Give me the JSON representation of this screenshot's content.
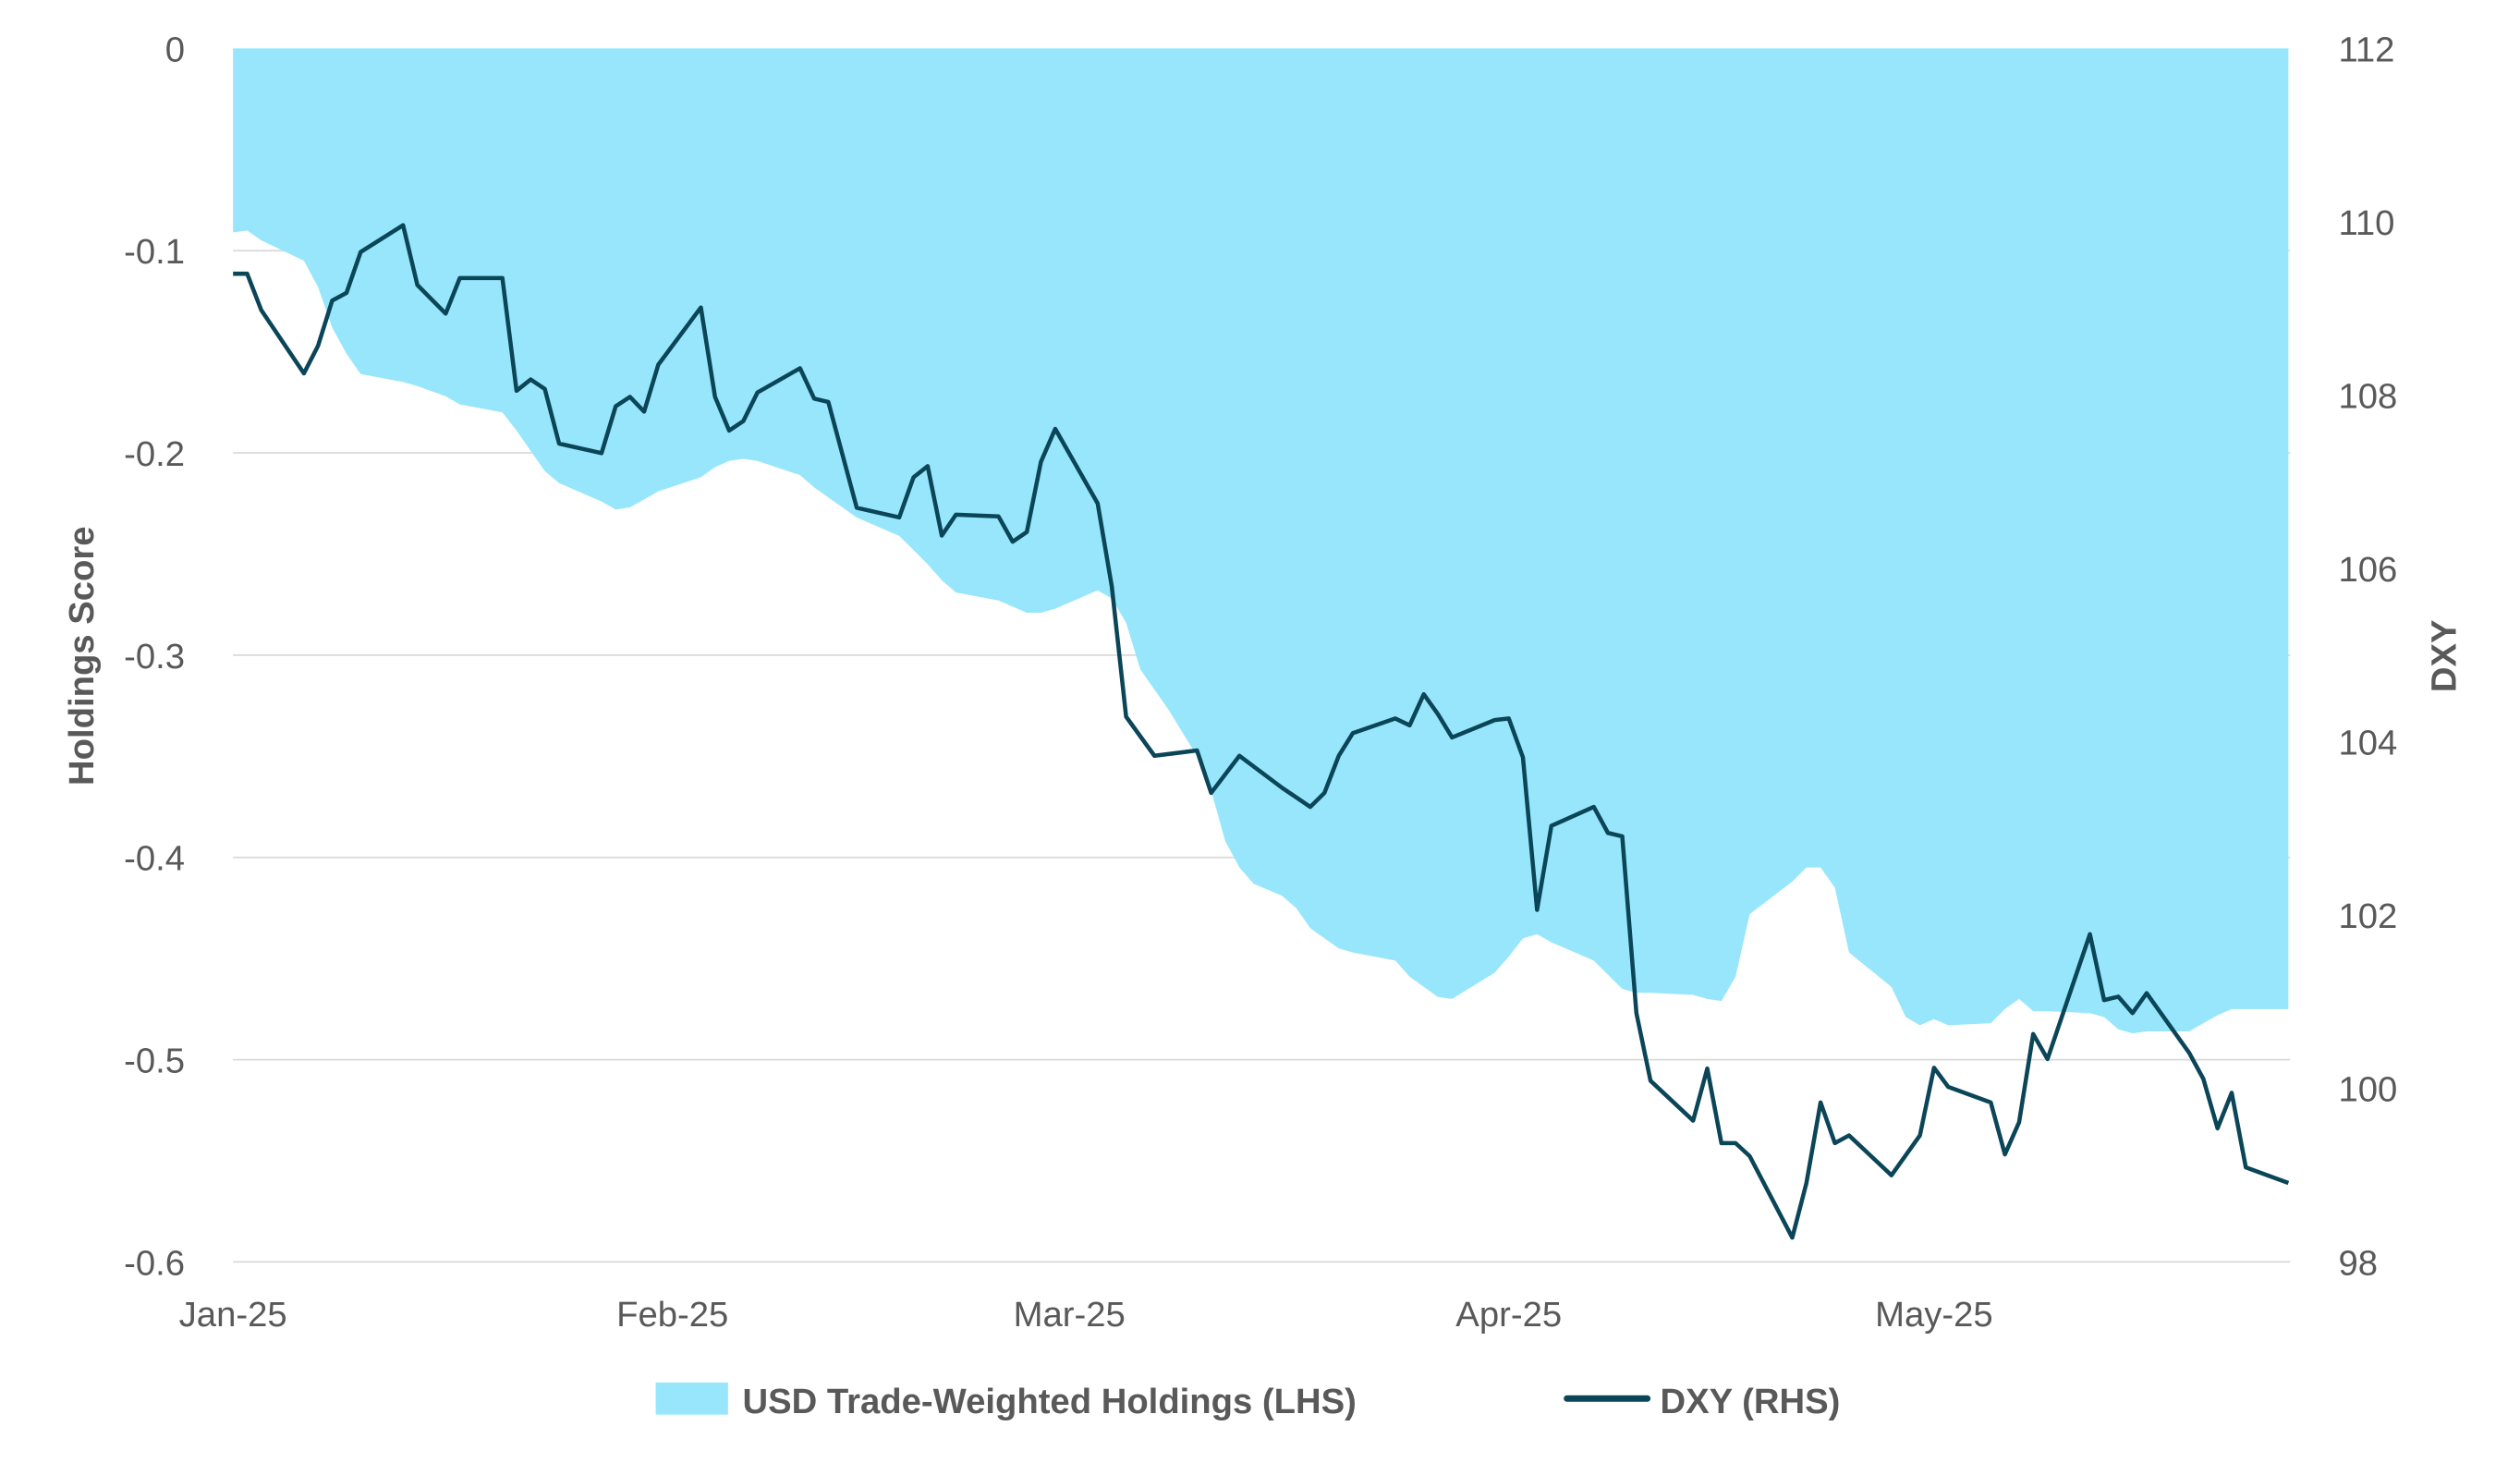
{
  "chart_data": {
    "type": "area+line",
    "title": "",
    "xlabel": "",
    "ylabel_left": "Holdings Score",
    "ylabel_right": "DXY",
    "ylim_left": [
      -0.6,
      0
    ],
    "ylim_right": [
      98,
      112
    ],
    "yticks_left": [
      "0",
      "-0.1",
      "-0.2",
      "-0.3",
      "-0.4",
      "-0.5",
      "-0.6"
    ],
    "yticks_right": [
      "112",
      "110",
      "108",
      "106",
      "104",
      "102",
      "100",
      "98"
    ],
    "xticks": [
      {
        "date": "2025-01-01",
        "label": "Jan-25"
      },
      {
        "date": "2025-02-01",
        "label": "Feb-25"
      },
      {
        "date": "2025-03-01",
        "label": "Mar-25"
      },
      {
        "date": "2025-04-01",
        "label": "Apr-25"
      },
      {
        "date": "2025-05-01",
        "label": "May-25"
      }
    ],
    "grid": "horizontal",
    "legend_position": "bottom",
    "series": [
      {
        "name": "USD Trade-Weighted Holdings (LHS)",
        "type": "area",
        "axis": "left",
        "color": "#98E6FC",
        "points": [
          [
            "2025-01-01",
            -0.091
          ],
          [
            "2025-01-02",
            -0.09
          ],
          [
            "2025-01-03",
            -0.095
          ],
          [
            "2025-01-06",
            -0.105
          ],
          [
            "2025-01-07",
            -0.118
          ],
          [
            "2025-01-08",
            -0.138
          ],
          [
            "2025-01-09",
            -0.151
          ],
          [
            "2025-01-10",
            -0.161
          ],
          [
            "2025-01-13",
            -0.165
          ],
          [
            "2025-01-14",
            -0.167
          ],
          [
            "2025-01-16",
            -0.172
          ],
          [
            "2025-01-17",
            -0.176
          ],
          [
            "2025-01-20",
            -0.18
          ],
          [
            "2025-01-21",
            -0.189
          ],
          [
            "2025-01-22",
            -0.199
          ],
          [
            "2025-01-23",
            -0.209
          ],
          [
            "2025-01-24",
            -0.215
          ],
          [
            "2025-01-27",
            -0.224
          ],
          [
            "2025-01-28",
            -0.228
          ],
          [
            "2025-01-29",
            -0.227
          ],
          [
            "2025-01-30",
            -0.223
          ],
          [
            "2025-01-31",
            -0.219
          ],
          [
            "2025-02-03",
            -0.212
          ],
          [
            "2025-02-04",
            -0.207
          ],
          [
            "2025-02-05",
            -0.204
          ],
          [
            "2025-02-06",
            -0.203
          ],
          [
            "2025-02-07",
            -0.204
          ],
          [
            "2025-02-10",
            -0.211
          ],
          [
            "2025-02-11",
            -0.217
          ],
          [
            "2025-02-12",
            -0.222
          ],
          [
            "2025-02-14",
            -0.232
          ],
          [
            "2025-02-17",
            -0.241
          ],
          [
            "2025-02-18",
            -0.248
          ],
          [
            "2025-02-19",
            -0.255
          ],
          [
            "2025-02-20",
            -0.263
          ],
          [
            "2025-02-21",
            -0.269
          ],
          [
            "2025-02-24",
            -0.273
          ],
          [
            "2025-02-25",
            -0.276
          ],
          [
            "2025-02-26",
            -0.279
          ],
          [
            "2025-02-27",
            -0.279
          ],
          [
            "2025-02-28",
            -0.277
          ],
          [
            "2025-03-03",
            -0.268
          ],
          [
            "2025-03-04",
            -0.272
          ],
          [
            "2025-03-05",
            -0.284
          ],
          [
            "2025-03-06",
            -0.307
          ],
          [
            "2025-03-08",
            -0.327
          ],
          [
            "2025-03-10",
            -0.35
          ],
          [
            "2025-03-11",
            -0.367
          ],
          [
            "2025-03-12",
            -0.392
          ],
          [
            "2025-03-13",
            -0.405
          ],
          [
            "2025-03-14",
            -0.413
          ],
          [
            "2025-03-16",
            -0.419
          ],
          [
            "2025-03-17",
            -0.425
          ],
          [
            "2025-03-18",
            -0.435
          ],
          [
            "2025-03-20",
            -0.445
          ],
          [
            "2025-03-21",
            -0.447
          ],
          [
            "2025-03-24",
            -0.451
          ],
          [
            "2025-03-25",
            -0.459
          ],
          [
            "2025-03-27",
            -0.469
          ],
          [
            "2025-03-28",
            -0.47
          ],
          [
            "2025-03-31",
            -0.457
          ],
          [
            "2025-04-01",
            -0.449
          ],
          [
            "2025-04-02",
            -0.44
          ],
          [
            "2025-04-03",
            -0.438
          ],
          [
            "2025-04-04",
            -0.442
          ],
          [
            "2025-04-07",
            -0.451
          ],
          [
            "2025-04-08",
            -0.458
          ],
          [
            "2025-04-09",
            -0.465
          ],
          [
            "2025-04-10",
            -0.467
          ],
          [
            "2025-04-11",
            -0.467
          ],
          [
            "2025-04-14",
            -0.468
          ],
          [
            "2025-04-15",
            -0.47
          ],
          [
            "2025-04-16",
            -0.471
          ],
          [
            "2025-04-17",
            -0.459
          ],
          [
            "2025-04-18",
            -0.428
          ],
          [
            "2025-04-21",
            -0.412
          ],
          [
            "2025-04-22",
            -0.405
          ],
          [
            "2025-04-23",
            -0.405
          ],
          [
            "2025-04-24",
            -0.415
          ],
          [
            "2025-04-25",
            -0.447
          ],
          [
            "2025-04-28",
            -0.464
          ],
          [
            "2025-04-29",
            -0.479
          ],
          [
            "2025-04-30",
            -0.483
          ],
          [
            "2025-05-01",
            -0.48
          ],
          [
            "2025-05-02",
            -0.483
          ],
          [
            "2025-05-05",
            -0.482
          ],
          [
            "2025-05-06",
            -0.475
          ],
          [
            "2025-05-07",
            -0.47
          ],
          [
            "2025-05-08",
            -0.476
          ],
          [
            "2025-05-09",
            -0.476
          ],
          [
            "2025-05-12",
            -0.477
          ],
          [
            "2025-05-13",
            -0.479
          ],
          [
            "2025-05-14",
            -0.485
          ],
          [
            "2025-05-15",
            -0.487
          ],
          [
            "2025-05-16",
            -0.486
          ],
          [
            "2025-05-19",
            -0.486
          ],
          [
            "2025-05-20",
            -0.482
          ],
          [
            "2025-05-21",
            -0.478
          ],
          [
            "2025-05-22",
            -0.475
          ],
          [
            "2025-05-23",
            -0.475
          ],
          [
            "2025-05-26",
            -0.475
          ]
        ]
      },
      {
        "name": "DXY (RHS)",
        "type": "line",
        "axis": "right",
        "color": "#0B4558",
        "points": [
          [
            "2025-01-01",
            109.4
          ],
          [
            "2025-01-02",
            109.4
          ],
          [
            "2025-01-03",
            108.98
          ],
          [
            "2025-01-06",
            108.25
          ],
          [
            "2025-01-07",
            108.57
          ],
          [
            "2025-01-08",
            109.09
          ],
          [
            "2025-01-09",
            109.18
          ],
          [
            "2025-01-10",
            109.65
          ],
          [
            "2025-01-13",
            109.96
          ],
          [
            "2025-01-14",
            109.27
          ],
          [
            "2025-01-16",
            108.94
          ],
          [
            "2025-01-17",
            109.35
          ],
          [
            "2025-01-20",
            109.35
          ],
          [
            "2025-01-21",
            108.05
          ],
          [
            "2025-01-22",
            108.18
          ],
          [
            "2025-01-23",
            108.07
          ],
          [
            "2025-01-24",
            107.44
          ],
          [
            "2025-01-27",
            107.33
          ],
          [
            "2025-01-28",
            107.87
          ],
          [
            "2025-01-29",
            107.98
          ],
          [
            "2025-01-30",
            107.81
          ],
          [
            "2025-01-31",
            108.35
          ],
          [
            "2025-02-03",
            109.01
          ],
          [
            "2025-02-04",
            107.98
          ],
          [
            "2025-02-05",
            107.59
          ],
          [
            "2025-02-06",
            107.7
          ],
          [
            "2025-02-07",
            108.03
          ],
          [
            "2025-02-10",
            108.31
          ],
          [
            "2025-02-11",
            107.96
          ],
          [
            "2025-02-12",
            107.92
          ],
          [
            "2025-02-14",
            106.7
          ],
          [
            "2025-02-17",
            106.59
          ],
          [
            "2025-02-18",
            107.05
          ],
          [
            "2025-02-19",
            107.18
          ],
          [
            "2025-02-20",
            106.38
          ],
          [
            "2025-02-21",
            106.62
          ],
          [
            "2025-02-24",
            106.6
          ],
          [
            "2025-02-25",
            106.31
          ],
          [
            "2025-02-26",
            106.42
          ],
          [
            "2025-02-27",
            107.23
          ],
          [
            "2025-02-28",
            107.61
          ],
          [
            "2025-03-03",
            106.75
          ],
          [
            "2025-03-04",
            105.79
          ],
          [
            "2025-03-05",
            104.29
          ],
          [
            "2025-03-07",
            103.84
          ],
          [
            "2025-03-10",
            103.9
          ],
          [
            "2025-03-11",
            103.41
          ],
          [
            "2025-03-13",
            103.84
          ],
          [
            "2025-03-16",
            103.47
          ],
          [
            "2025-03-18",
            103.25
          ],
          [
            "2025-03-19",
            103.41
          ],
          [
            "2025-03-20",
            103.84
          ],
          [
            "2025-03-21",
            104.1
          ],
          [
            "2025-03-24",
            104.27
          ],
          [
            "2025-03-25",
            104.19
          ],
          [
            "2025-03-26",
            104.55
          ],
          [
            "2025-03-27",
            104.32
          ],
          [
            "2025-03-28",
            104.05
          ],
          [
            "2025-03-31",
            104.25
          ],
          [
            "2025-04-01",
            104.27
          ],
          [
            "2025-04-02",
            103.82
          ],
          [
            "2025-04-03",
            102.06
          ],
          [
            "2025-04-04",
            103.03
          ],
          [
            "2025-04-07",
            103.25
          ],
          [
            "2025-04-08",
            102.95
          ],
          [
            "2025-04-09",
            102.91
          ],
          [
            "2025-04-10",
            100.87
          ],
          [
            "2025-04-11",
            100.09
          ],
          [
            "2025-04-14",
            99.63
          ],
          [
            "2025-04-15",
            100.23
          ],
          [
            "2025-04-16",
            99.37
          ],
          [
            "2025-04-17",
            99.37
          ],
          [
            "2025-04-18",
            99.22
          ],
          [
            "2025-04-21",
            98.28
          ],
          [
            "2025-04-22",
            98.91
          ],
          [
            "2025-04-23",
            99.84
          ],
          [
            "2025-04-24",
            99.37
          ],
          [
            "2025-04-25",
            99.46
          ],
          [
            "2025-04-28",
            99.0
          ],
          [
            "2025-04-30",
            99.46
          ],
          [
            "2025-05-01",
            100.24
          ],
          [
            "2025-05-02",
            100.02
          ],
          [
            "2025-05-05",
            99.84
          ],
          [
            "2025-05-06",
            99.24
          ],
          [
            "2025-05-07",
            99.61
          ],
          [
            "2025-05-08",
            100.63
          ],
          [
            "2025-05-09",
            100.34
          ],
          [
            "2025-05-12",
            101.78
          ],
          [
            "2025-05-13",
            101.02
          ],
          [
            "2025-05-14",
            101.06
          ],
          [
            "2025-05-15",
            100.87
          ],
          [
            "2025-05-16",
            101.1
          ],
          [
            "2025-05-19",
            100.41
          ],
          [
            "2025-05-20",
            100.11
          ],
          [
            "2025-05-21",
            99.54
          ],
          [
            "2025-05-22",
            99.95
          ],
          [
            "2025-05-23",
            99.09
          ],
          [
            "2025-05-26",
            98.91
          ]
        ]
      }
    ]
  }
}
